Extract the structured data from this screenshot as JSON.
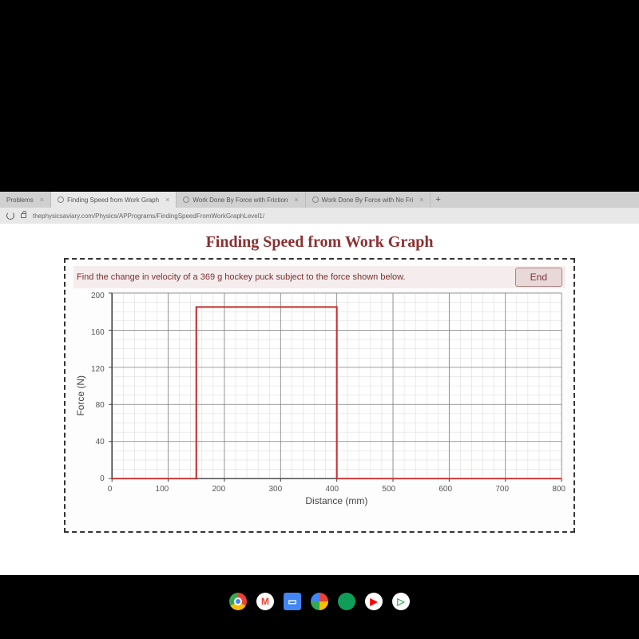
{
  "browser": {
    "tabs": [
      {
        "label": "Problems",
        "active": false
      },
      {
        "label": "Finding Speed from Work Graph",
        "active": true
      },
      {
        "label": "Work Done By Force with Friction",
        "active": false
      },
      {
        "label": "Work Done By Force with No Fri",
        "active": false
      }
    ],
    "url": "thephysicsaviary.com/Physics/APPrograms/FindingSpeedFromWorkGraphLevel1/"
  },
  "page": {
    "title": "Finding Speed from Work Graph",
    "prompt": "Find the change in velocity of a 369 g hockey puck subject to the force shown below.",
    "end_button": "End"
  },
  "chart": {
    "type": "line",
    "y_label": "Force (N)",
    "x_label": "Distance (mm)",
    "xlim": [
      0,
      800
    ],
    "ylim": [
      0,
      200
    ],
    "x_ticks": [
      0,
      100,
      200,
      300,
      400,
      500,
      600,
      700,
      800
    ],
    "y_ticks": [
      0,
      40,
      80,
      120,
      160,
      200
    ],
    "x_minor_step": 20,
    "y_minor_step": 10,
    "series": {
      "points": [
        [
          0,
          0
        ],
        [
          150,
          0
        ],
        [
          150,
          185
        ],
        [
          400,
          185
        ],
        [
          400,
          0
        ],
        [
          800,
          0
        ]
      ],
      "color": "#c43030",
      "width": 2
    },
    "grid_major_color": "#808080",
    "grid_minor_color": "#d8d8d8",
    "axis_color": "#404040",
    "background_color": "#ffffff",
    "label_fontsize": 12,
    "tick_fontsize": 10
  },
  "dock": {
    "icons": [
      {
        "name": "chrome",
        "bg": "#ffffff"
      },
      {
        "name": "gmail",
        "bg": "#ffffff"
      },
      {
        "name": "docs",
        "bg": "#4285f4"
      },
      {
        "name": "photos",
        "bg": "#ffffff"
      },
      {
        "name": "drive",
        "bg": "#0f9d58"
      },
      {
        "name": "youtube",
        "bg": "#ffffff"
      },
      {
        "name": "play",
        "bg": "#ffffff"
      }
    ]
  }
}
